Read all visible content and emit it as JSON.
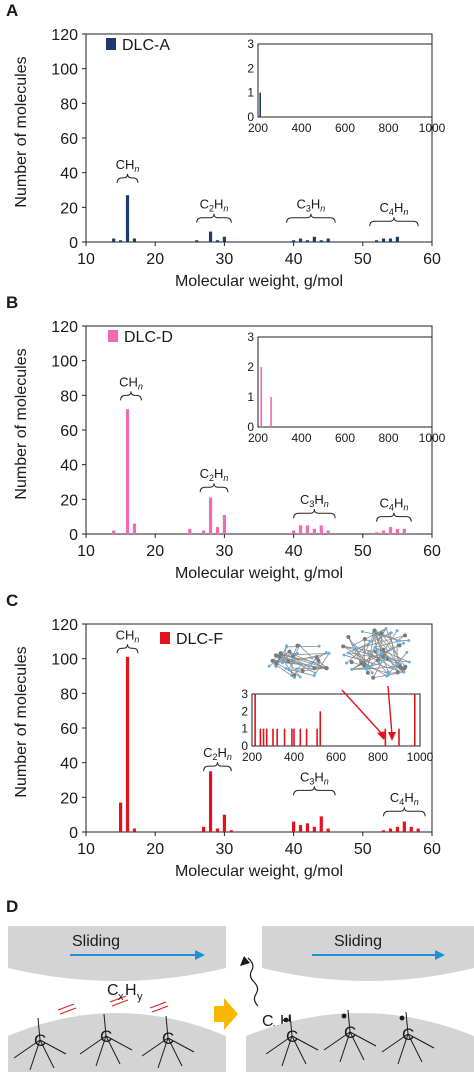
{
  "panels": [
    {
      "letter": "A",
      "chart_data": {
        "type": "bar",
        "color": "#1f3a6e",
        "legend": "DLC-A",
        "xlabel": "Molecular weight, g/mol",
        "ylabel": "Number of molecules",
        "xlim": [
          10,
          60
        ],
        "ylim": [
          0,
          120
        ],
        "xticks": [
          10,
          20,
          30,
          40,
          50,
          60
        ],
        "yticks": [
          0,
          20,
          40,
          60,
          80,
          100,
          120
        ],
        "bars": [
          [
            14,
            2
          ],
          [
            15,
            1
          ],
          [
            16,
            27
          ],
          [
            17,
            2
          ],
          [
            26,
            1
          ],
          [
            28,
            6
          ],
          [
            29,
            1
          ],
          [
            30,
            3
          ],
          [
            40,
            1
          ],
          [
            41,
            2
          ],
          [
            42,
            1
          ],
          [
            43,
            3
          ],
          [
            44,
            1
          ],
          [
            45,
            2
          ],
          [
            52,
            1
          ],
          [
            53,
            2
          ],
          [
            54,
            2
          ],
          [
            55,
            3
          ]
        ],
        "groups": [
          {
            "label": "CH",
            "sub": "n",
            "range": [
              14.5,
              17.5
            ],
            "level": 37
          },
          {
            "label": "C",
            "sub1": "2",
            "label2": "H",
            "sub": "n",
            "range": [
              26,
              31
            ],
            "level": 14
          },
          {
            "label": "C",
            "sub1": "3",
            "label2": "H",
            "sub": "n",
            "range": [
              39,
              46
            ],
            "level": 14
          },
          {
            "label": "C",
            "sub1": "4",
            "label2": "H",
            "sub": "n",
            "range": [
              51,
              58
            ],
            "level": 12
          }
        ],
        "inset": {
          "xlim": [
            200,
            1000
          ],
          "ylim": [
            0,
            3
          ],
          "xticks": [
            200,
            400,
            600,
            800,
            1000
          ],
          "yticks": [
            0,
            1,
            2,
            3
          ],
          "bars": [
            [
              210,
              1
            ]
          ]
        }
      }
    },
    {
      "letter": "B",
      "chart_data": {
        "type": "bar",
        "color": "#f06ab4",
        "legend": "DLC-D",
        "xlabel": "Molecular weight, g/mol",
        "ylabel": "Number of molecules",
        "xlim": [
          10,
          60
        ],
        "ylim": [
          0,
          120
        ],
        "xticks": [
          10,
          20,
          30,
          40,
          50,
          60
        ],
        "yticks": [
          0,
          20,
          40,
          60,
          80,
          100,
          120
        ],
        "bars": [
          [
            14,
            2
          ],
          [
            16,
            72
          ],
          [
            17,
            6
          ],
          [
            25,
            3
          ],
          [
            27,
            2
          ],
          [
            28,
            21
          ],
          [
            29,
            4
          ],
          [
            30,
            11
          ],
          [
            40,
            2
          ],
          [
            41,
            5
          ],
          [
            42,
            5
          ],
          [
            43,
            3
          ],
          [
            44,
            5
          ],
          [
            45,
            2
          ],
          [
            52,
            1
          ],
          [
            53,
            2
          ],
          [
            54,
            4
          ],
          [
            55,
            3
          ],
          [
            56,
            3
          ]
        ],
        "groups": [
          {
            "label": "CH",
            "sub": "n",
            "range": [
              15,
              18
            ],
            "level": 80
          },
          {
            "label": "C",
            "sub1": "2",
            "label2": "H",
            "sub": "n",
            "range": [
              26.5,
              30.5
            ],
            "level": 27
          },
          {
            "label": "C",
            "sub1": "3",
            "label2": "H",
            "sub": "n",
            "range": [
              40,
              46
            ],
            "level": 12
          },
          {
            "label": "C",
            "sub1": "4",
            "label2": "H",
            "sub": "n",
            "range": [
              52,
              57
            ],
            "level": 10
          }
        ],
        "inset": {
          "xlim": [
            200,
            1000
          ],
          "ylim": [
            0,
            3
          ],
          "xticks": [
            200,
            400,
            600,
            800,
            1000
          ],
          "yticks": [
            0,
            1,
            2,
            3
          ],
          "bars": [
            [
              215,
              2
            ],
            [
              260,
              1
            ]
          ]
        }
      }
    },
    {
      "letter": "C",
      "chart_data": {
        "type": "bar",
        "color": "#e0141e",
        "legend": "DLC-F",
        "xlabel": "Molecular weight, g/mol",
        "ylabel": "Number of molecules",
        "xlim": [
          10,
          60
        ],
        "ylim": [
          0,
          120
        ],
        "xticks": [
          10,
          20,
          30,
          40,
          50,
          60
        ],
        "yticks": [
          0,
          20,
          40,
          60,
          80,
          100,
          120
        ],
        "bars": [
          [
            15,
            17
          ],
          [
            16,
            101
          ],
          [
            17,
            2
          ],
          [
            27,
            3
          ],
          [
            28,
            35
          ],
          [
            29,
            2
          ],
          [
            30,
            10
          ],
          [
            31,
            1
          ],
          [
            40,
            6
          ],
          [
            41,
            4
          ],
          [
            42,
            5
          ],
          [
            43,
            3
          ],
          [
            44,
            9
          ],
          [
            45,
            2
          ],
          [
            53,
            1
          ],
          [
            54,
            2
          ],
          [
            55,
            3
          ],
          [
            56,
            6
          ],
          [
            57,
            3
          ],
          [
            58,
            2
          ]
        ],
        "groups": [
          {
            "label": "CH",
            "sub": "n",
            "range": [
              14.5,
              17.5
            ],
            "level": 106
          },
          {
            "label": "C",
            "sub1": "2",
            "label2": "H",
            "sub": "n",
            "range": [
              27,
              31
            ],
            "level": 38
          },
          {
            "label": "C",
            "sub1": "3",
            "label2": "H",
            "sub": "n",
            "range": [
              40,
              46
            ],
            "level": 24
          },
          {
            "label": "C",
            "sub1": "4",
            "label2": "H",
            "sub": "n",
            "range": [
              53,
              59
            ],
            "level": 12
          }
        ],
        "inset": {
          "xlim": [
            200,
            1000
          ],
          "ylim": [
            0,
            3
          ],
          "xticks": [
            200,
            400,
            600,
            800,
            1000
          ],
          "yticks": [
            0,
            1,
            2,
            3
          ],
          "bars": [
            [
              215,
              3
            ],
            [
              240,
              1
            ],
            [
              255,
              1
            ],
            [
              270,
              1
            ],
            [
              300,
              1
            ],
            [
              320,
              1
            ],
            [
              355,
              1
            ],
            [
              390,
              1
            ],
            [
              400,
              1
            ],
            [
              430,
              1
            ],
            [
              460,
              1
            ],
            [
              510,
              1
            ],
            [
              525,
              2
            ],
            [
              835,
              1
            ],
            [
              900,
              1
            ],
            [
              975,
              3
            ]
          ]
        }
      }
    }
  ],
  "diagram_d": {
    "letter": "D",
    "sliding_label": "Sliding",
    "radical": {
      "c": "C",
      "x": "x",
      "h": "H",
      "y": "y"
    },
    "atom": "C",
    "colors": {
      "arrow": "#1e90d6",
      "block": "#d4d4d4",
      "yellow_arrow": "#f6b800",
      "bond_break": "#d81e1e"
    }
  }
}
